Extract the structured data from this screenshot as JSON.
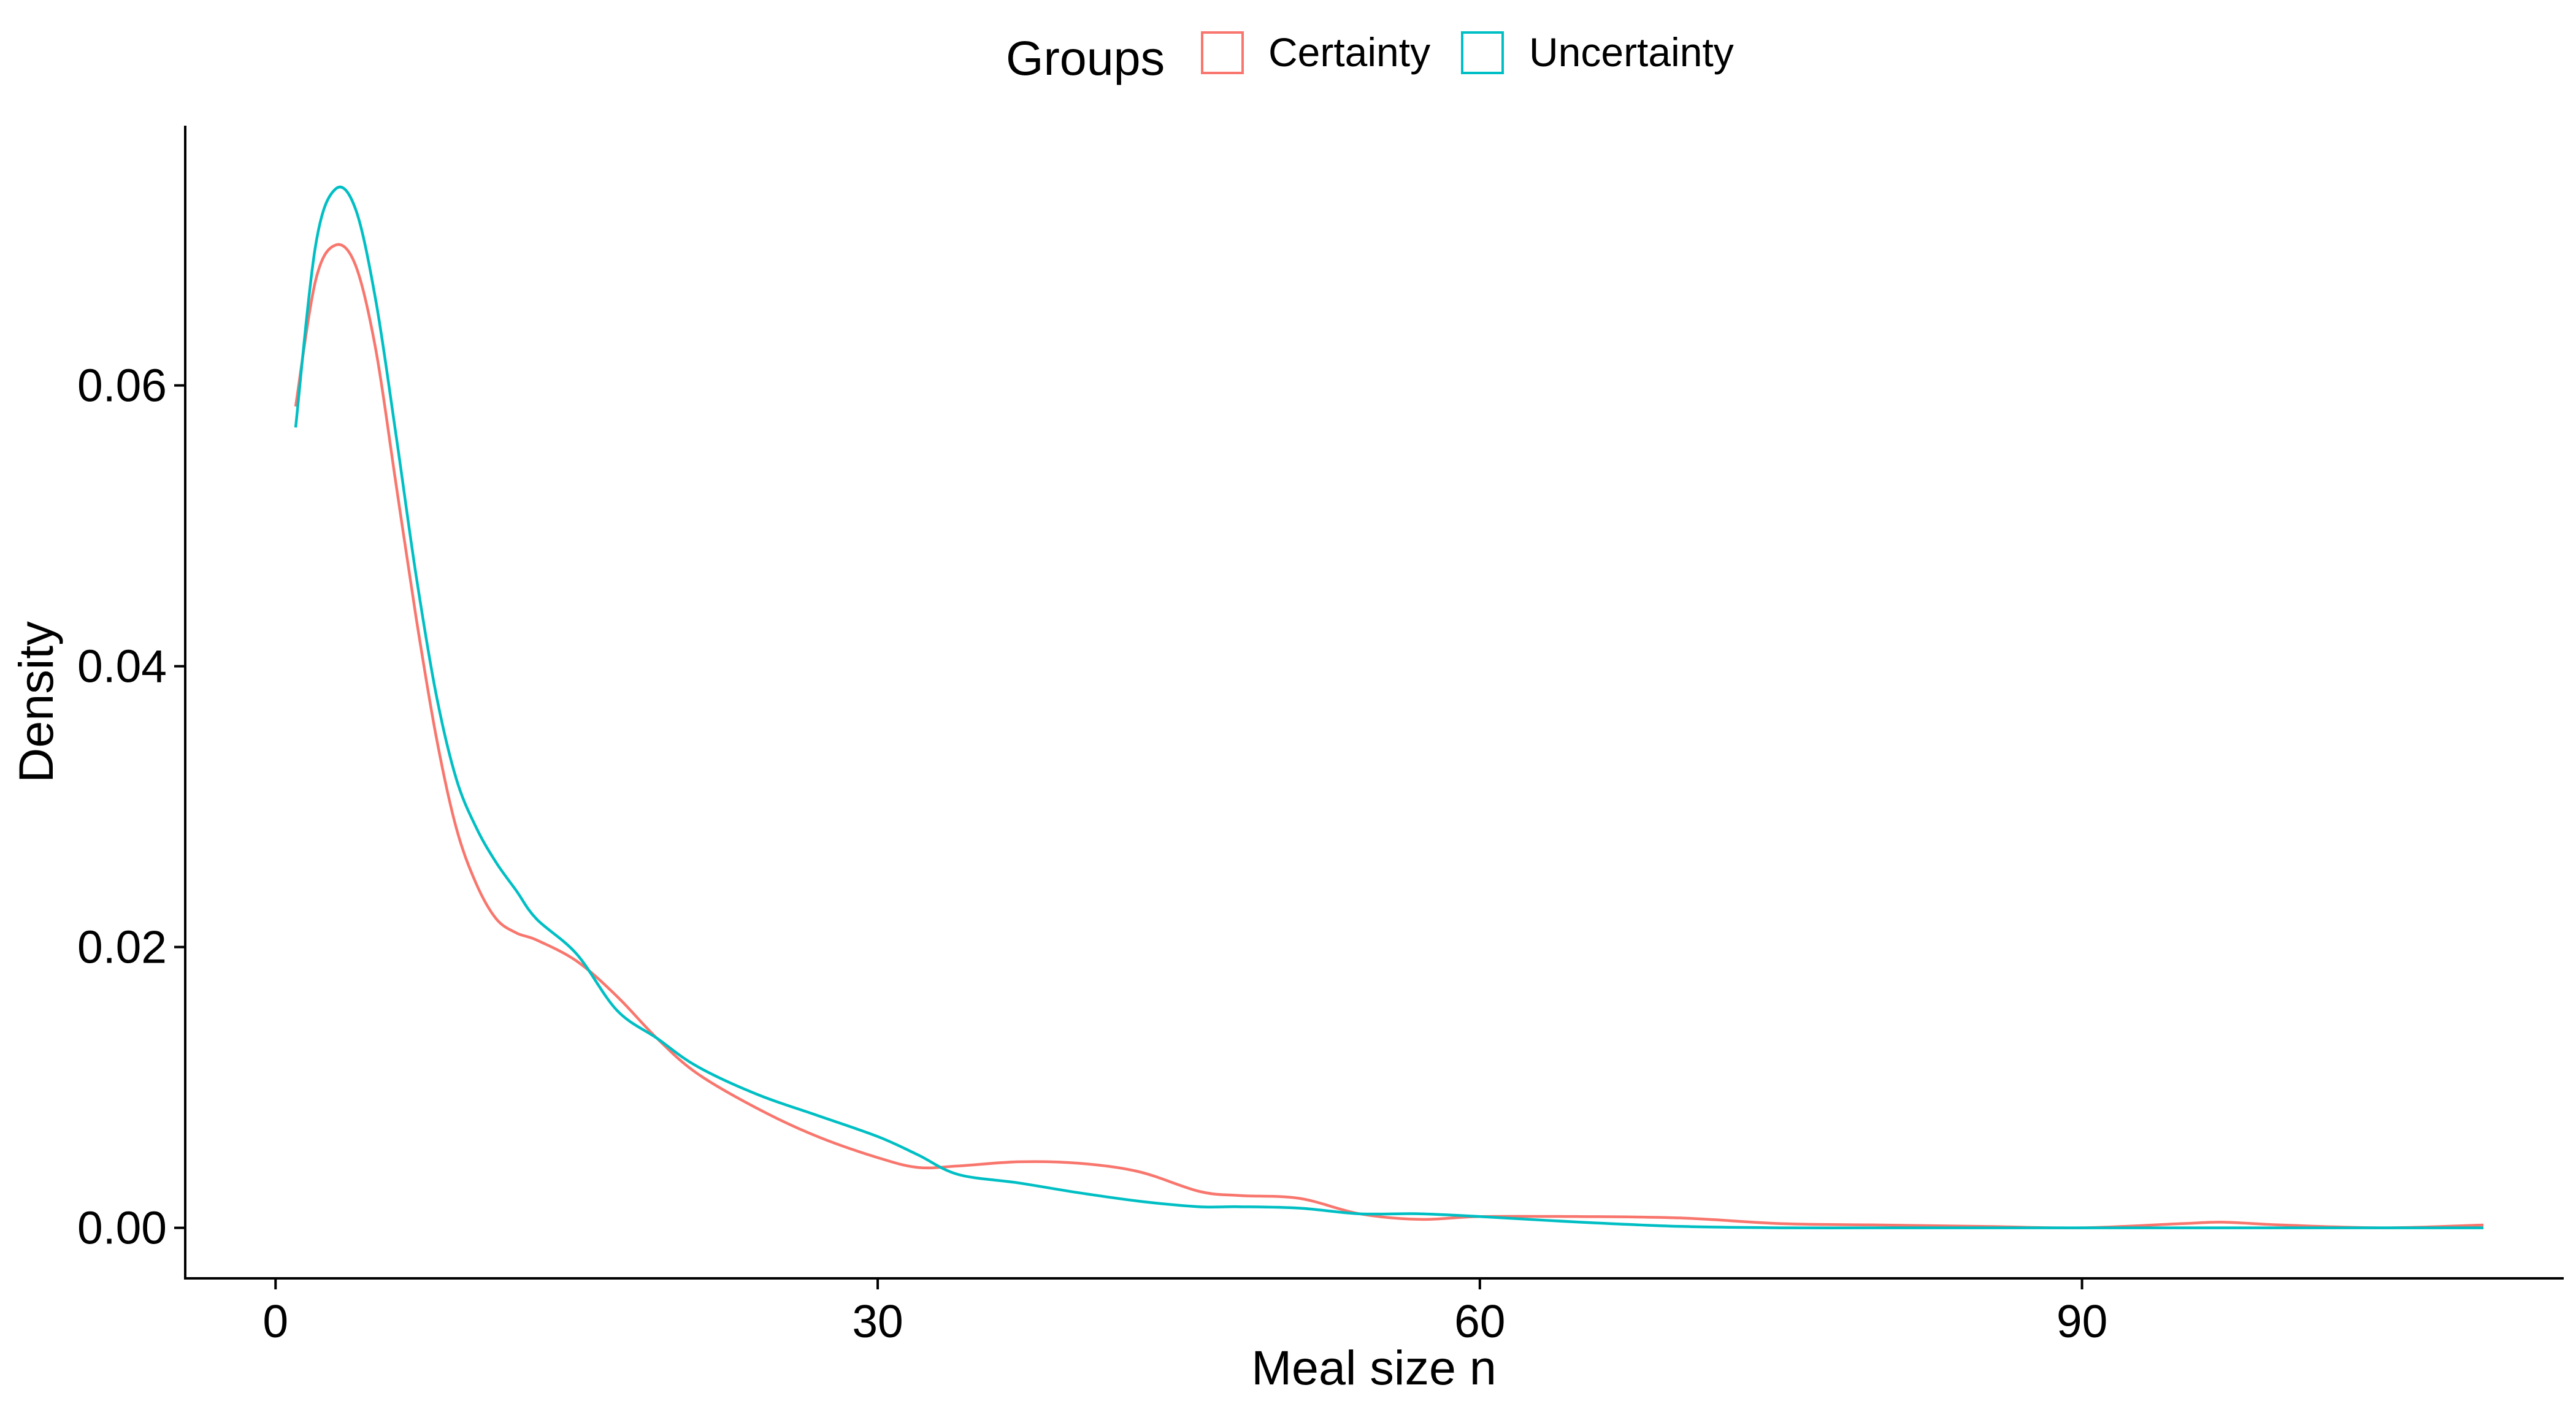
{
  "chart_data": {
    "type": "line",
    "xlabel": "Meal size n",
    "ylabel": "Density",
    "xlim": [
      -4.5,
      114
    ],
    "ylim": [
      -0.0036,
      0.0785
    ],
    "xticks": [
      0,
      30,
      60,
      90
    ],
    "xtick_labels": [
      "0",
      "30",
      "60",
      "90"
    ],
    "yticks": [
      0,
      0.02,
      0.04,
      0.06
    ],
    "ytick_labels": [
      "0.00",
      "0.02",
      "0.04",
      "0.06"
    ],
    "grid": false,
    "legend": {
      "title": "Groups",
      "position": "top",
      "entries": [
        "Certainty",
        "Uncertainty"
      ]
    },
    "colors": {
      "Certainty": "#F8766D",
      "Uncertainty": "#00BFC4"
    },
    "series": [
      {
        "name": "Certainty",
        "color": "#F8766D",
        "x": [
          1,
          2,
          3,
          4,
          5,
          6,
          7,
          8,
          9,
          10,
          11,
          12,
          13,
          15,
          17,
          19,
          21,
          24,
          27,
          30,
          32,
          34,
          37,
          40,
          43,
          46,
          48,
          51,
          54,
          57,
          60,
          65,
          70,
          75,
          80,
          85,
          90,
          95,
          97,
          100,
          105,
          110
        ],
        "y": [
          0.0585,
          0.0675,
          0.07,
          0.0685,
          0.0625,
          0.053,
          0.0435,
          0.035,
          0.0285,
          0.0245,
          0.022,
          0.021,
          0.0205,
          0.019,
          0.0165,
          0.0135,
          0.011,
          0.0085,
          0.0065,
          0.005,
          0.0043,
          0.0044,
          0.0047,
          0.0046,
          0.004,
          0.0026,
          0.0023,
          0.0021,
          0.001,
          0.0006,
          0.0008,
          0.0008,
          0.0007,
          0.0003,
          0.0002,
          0.0001,
          0.0,
          0.0003,
          0.0004,
          0.0002,
          0.0,
          0.0002
        ]
      },
      {
        "name": "Uncertainty",
        "color": "#00BFC4",
        "x": [
          1,
          2,
          3,
          4,
          5,
          6,
          7,
          8,
          9,
          10,
          11,
          12,
          13,
          15,
          17,
          19,
          21,
          24,
          27,
          30,
          32,
          34,
          37,
          40,
          43,
          46,
          48,
          51,
          54,
          57,
          60,
          65,
          70,
          75,
          80,
          85,
          90,
          95,
          100,
          105,
          110
        ],
        "y": [
          0.057,
          0.07,
          0.074,
          0.0725,
          0.066,
          0.0565,
          0.0465,
          0.038,
          0.032,
          0.0285,
          0.026,
          0.024,
          0.022,
          0.0195,
          0.0155,
          0.0135,
          0.0115,
          0.0095,
          0.008,
          0.0065,
          0.0052,
          0.0038,
          0.0032,
          0.0025,
          0.0019,
          0.0015,
          0.0015,
          0.0014,
          0.001,
          0.001,
          0.0008,
          0.0004,
          0.0001,
          0.0,
          0.0,
          0.0,
          0.0,
          0.0,
          0.0,
          0.0,
          0.0
        ]
      }
    ]
  }
}
